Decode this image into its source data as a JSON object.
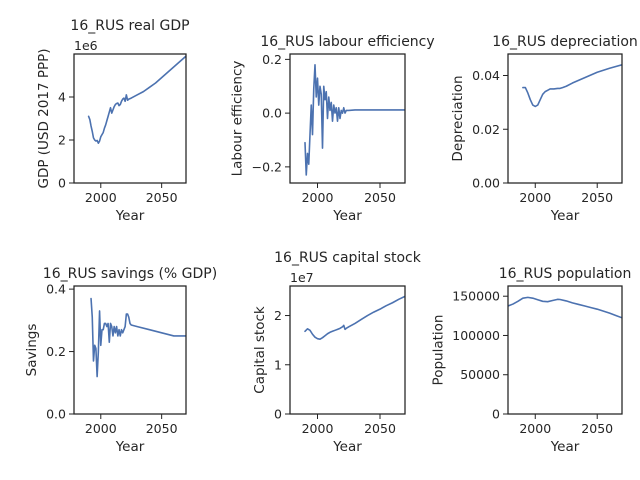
{
  "figure": {
    "line_color": "#4c72b0"
  },
  "chart_data": [
    {
      "type": "line",
      "title": "16_RUS real GDP",
      "xlabel": "Year",
      "ylabel": "GDP (USD 2017 PPP)",
      "offset_text": "1e6",
      "xlim": [
        1978,
        2070
      ],
      "ylim": [
        0,
        6.0
      ],
      "xticks": [
        2000,
        2050
      ],
      "xtick_labels": [
        "2000",
        "2050"
      ],
      "yticks": [
        0,
        2,
        4
      ],
      "ytick_labels": [
        "0",
        "2",
        "4"
      ],
      "grid": false,
      "x": [
        1990,
        1991,
        1992,
        1993,
        1994,
        1995,
        1996,
        1997,
        1998,
        1999,
        2000,
        2001,
        2002,
        2003,
        2004,
        2005,
        2006,
        2007,
        2008,
        2009,
        2010,
        2011,
        2012,
        2013,
        2014,
        2015,
        2016,
        2017,
        2018,
        2019,
        2020,
        2021,
        2022,
        2023,
        2025,
        2030,
        2035,
        2040,
        2045,
        2050,
        2055,
        2060,
        2065,
        2070
      ],
      "values": [
        3.1,
        2.95,
        2.65,
        2.4,
        2.1,
        2.0,
        1.95,
        1.98,
        1.85,
        1.95,
        2.15,
        2.25,
        2.35,
        2.55,
        2.7,
        2.9,
        3.1,
        3.3,
        3.5,
        3.25,
        3.4,
        3.55,
        3.65,
        3.7,
        3.72,
        3.6,
        3.65,
        3.8,
        3.9,
        3.95,
        3.8,
        4.1,
        3.85,
        3.9,
        3.95,
        4.1,
        4.25,
        4.45,
        4.65,
        4.9,
        5.15,
        5.4,
        5.65,
        5.9
      ]
    },
    {
      "type": "line",
      "title": "16_RUS labour efficiency",
      "xlabel": "Year",
      "ylabel": "Labour efficiency",
      "offset_text": "",
      "xlim": [
        1978,
        2070
      ],
      "ylim": [
        -0.26,
        0.22
      ],
      "xticks": [
        2000,
        2050
      ],
      "xtick_labels": [
        "2000",
        "2050"
      ],
      "yticks": [
        -0.2,
        0.0,
        0.2
      ],
      "ytick_labels": [
        "−0.2",
        "0.0",
        "0.2"
      ],
      "grid": false,
      "x": [
        1990,
        1991,
        1992,
        1993,
        1994,
        1995,
        1996,
        1997,
        1998,
        1999,
        2000,
        2001,
        2002,
        2003,
        2004,
        2005,
        2006,
        2007,
        2008,
        2009,
        2010,
        2011,
        2012,
        2013,
        2014,
        2015,
        2016,
        2017,
        2018,
        2019,
        2020,
        2021,
        2022,
        2023,
        2024,
        2025,
        2030,
        2040,
        2050,
        2060,
        2070
      ],
      "values": [
        -0.11,
        -0.23,
        -0.15,
        -0.19,
        -0.08,
        0.03,
        -0.08,
        0.09,
        0.18,
        0.06,
        0.13,
        0.03,
        0.1,
        0.07,
        -0.13,
        0.1,
        0.05,
        0.08,
        -0.02,
        0.06,
        0.01,
        0.04,
        -0.03,
        0.03,
        0.0,
        0.02,
        -0.03,
        0.02,
        -0.02,
        0.01,
        0.0,
        0.02,
        0.0,
        0.01,
        0.01,
        0.01,
        0.012,
        0.012,
        0.012,
        0.012,
        0.012
      ]
    },
    {
      "type": "line",
      "title": "16_RUS depreciation",
      "xlabel": "Year",
      "ylabel": "Depreciation",
      "offset_text": "",
      "xlim": [
        1978,
        2070
      ],
      "ylim": [
        0,
        0.048
      ],
      "xticks": [
        2000,
        2050
      ],
      "xtick_labels": [
        "2000",
        "2050"
      ],
      "yticks": [
        0.0,
        0.02,
        0.04
      ],
      "ytick_labels": [
        "0.00",
        "0.02",
        "0.04"
      ],
      "grid": false,
      "x": [
        1990,
        1992,
        1994,
        1996,
        1998,
        2000,
        2002,
        2004,
        2006,
        2008,
        2010,
        2012,
        2015,
        2018,
        2020,
        2022,
        2025,
        2030,
        2040,
        2050,
        2060,
        2070
      ],
      "values": [
        0.0355,
        0.0355,
        0.0335,
        0.031,
        0.029,
        0.0285,
        0.029,
        0.031,
        0.033,
        0.034,
        0.0345,
        0.035,
        0.035,
        0.0352,
        0.0352,
        0.0355,
        0.036,
        0.0372,
        0.0392,
        0.0412,
        0.0427,
        0.044
      ]
    },
    {
      "type": "line",
      "title": "16_RUS savings (% GDP)",
      "xlabel": "Year",
      "ylabel": "Savings",
      "offset_text": "",
      "xlim": [
        1978,
        2070
      ],
      "ylim": [
        0,
        0.41
      ],
      "xticks": [
        2000,
        2050
      ],
      "xtick_labels": [
        "2000",
        "2050"
      ],
      "yticks": [
        0.0,
        0.2,
        0.4
      ],
      "ytick_labels": [
        "0.0",
        "0.2",
        "0.4"
      ],
      "grid": false,
      "x": [
        1992,
        1993,
        1994,
        1995,
        1996,
        1997,
        1998,
        1999,
        2000,
        2001,
        2002,
        2003,
        2004,
        2005,
        2006,
        2007,
        2008,
        2009,
        2010,
        2011,
        2012,
        2013,
        2014,
        2015,
        2016,
        2017,
        2018,
        2019,
        2020,
        2021,
        2022,
        2023,
        2024,
        2025,
        2030,
        2040,
        2050,
        2060,
        2065,
        2070
      ],
      "values": [
        0.37,
        0.31,
        0.17,
        0.22,
        0.21,
        0.12,
        0.2,
        0.33,
        0.22,
        0.27,
        0.27,
        0.29,
        0.29,
        0.28,
        0.29,
        0.23,
        0.29,
        0.28,
        0.25,
        0.28,
        0.26,
        0.28,
        0.25,
        0.27,
        0.25,
        0.27,
        0.26,
        0.27,
        0.28,
        0.32,
        0.32,
        0.31,
        0.29,
        0.285,
        0.28,
        0.27,
        0.26,
        0.25,
        0.25,
        0.25
      ]
    },
    {
      "type": "line",
      "title": "16_RUS capital stock",
      "xlabel": "Year",
      "ylabel": "Capital stock",
      "offset_text": "1e7",
      "xlim": [
        1978,
        2070
      ],
      "ylim": [
        0,
        2.6
      ],
      "xticks": [
        2000,
        2050
      ],
      "xtick_labels": [
        "2000",
        "2050"
      ],
      "yticks": [
        0,
        1,
        2
      ],
      "ytick_labels": [
        "0",
        "1",
        "2"
      ],
      "grid": false,
      "x": [
        1990,
        1992,
        1994,
        1996,
        1998,
        2000,
        2002,
        2004,
        2006,
        2008,
        2010,
        2012,
        2014,
        2016,
        2018,
        2020,
        2021,
        2022,
        2023,
        2025,
        2030,
        2035,
        2040,
        2045,
        2050,
        2055,
        2060,
        2065,
        2070
      ],
      "values": [
        1.68,
        1.73,
        1.7,
        1.62,
        1.56,
        1.53,
        1.52,
        1.55,
        1.59,
        1.63,
        1.66,
        1.68,
        1.7,
        1.72,
        1.74,
        1.77,
        1.8,
        1.72,
        1.74,
        1.77,
        1.84,
        1.92,
        2.0,
        2.07,
        2.13,
        2.2,
        2.26,
        2.33,
        2.39
      ]
    },
    {
      "type": "line",
      "title": "16_RUS population",
      "xlabel": "Year",
      "ylabel": "Population",
      "offset_text": "",
      "xlim": [
        1978,
        2070
      ],
      "ylim": [
        0,
        163000
      ],
      "xticks": [
        2000,
        2050
      ],
      "xtick_labels": [
        "2000",
        "2050"
      ],
      "yticks": [
        0,
        50000,
        100000,
        150000
      ],
      "ytick_labels": [
        "0",
        "50000",
        "100000",
        "150000"
      ],
      "grid": false,
      "x": [
        1978,
        1982,
        1986,
        1990,
        1994,
        1998,
        2002,
        2006,
        2010,
        2014,
        2018,
        2020,
        2025,
        2030,
        2035,
        2040,
        2045,
        2050,
        2055,
        2060,
        2065,
        2070
      ],
      "values": [
        137500,
        140000,
        143500,
        147500,
        148500,
        147500,
        145500,
        143500,
        143000,
        144500,
        146000,
        145800,
        144000,
        141500,
        139500,
        137500,
        135500,
        133500,
        131000,
        128500,
        125500,
        122500
      ]
    }
  ]
}
